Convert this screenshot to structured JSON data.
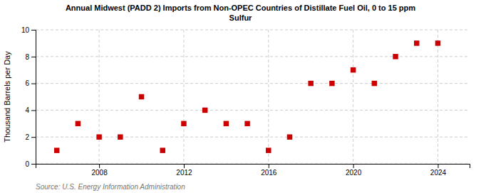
{
  "chart_data": {
    "type": "scatter",
    "title": "Annual Midwest (PADD 2) Imports from Non-OPEC Countries of Distillate Fuel Oil, 0 to 15 ppm\nSulfur",
    "ylabel": "Thousand Barrels per Day",
    "annotations": [
      "Source: U.S. Energy Information Administration"
    ],
    "x": [
      2006,
      2007,
      2008,
      2009,
      2010,
      2011,
      2012,
      2013,
      2014,
      2015,
      2016,
      2017,
      2018,
      2019,
      2020,
      2021,
      2022,
      2023,
      2024
    ],
    "values": [
      1,
      3,
      2,
      2,
      5,
      1,
      3,
      4,
      3,
      3,
      1,
      2,
      6,
      6,
      7,
      6,
      8,
      9,
      9
    ],
    "color": "#cc0000",
    "marker": "square",
    "xlim": [
      2005,
      2025.5
    ],
    "xticks": [
      2008,
      2012,
      2016,
      2020,
      2024
    ],
    "ylim": [
      0,
      10
    ],
    "yticks": [
      0,
      2,
      4,
      6,
      8,
      10
    ],
    "grid": true
  }
}
